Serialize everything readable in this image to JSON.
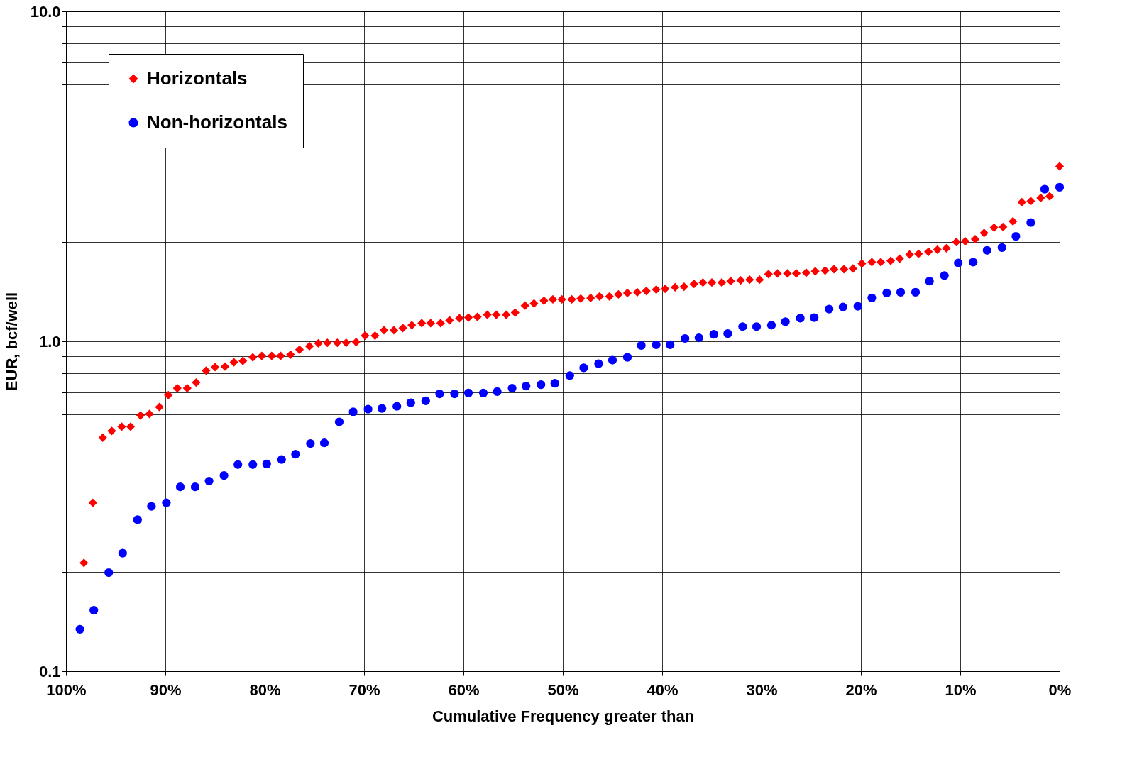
{
  "chart_data": {
    "type": "scatter",
    "xlabel": "Cumulative Frequency greater than",
    "ylabel": "EUR, bcf/well",
    "log": "y",
    "grid": true,
    "legend": "top left",
    "xlim": [
      100,
      0
    ],
    "xticks": [
      {
        "value": 100,
        "label": "100%"
      },
      {
        "value": 90,
        "label": "90%"
      },
      {
        "value": 80,
        "label": "80%"
      },
      {
        "value": 70,
        "label": "70%"
      },
      {
        "value": 60,
        "label": "60%"
      },
      {
        "value": 50,
        "label": "50%"
      },
      {
        "value": 40,
        "label": "40%"
      },
      {
        "value": 30,
        "label": "30%"
      },
      {
        "value": 20,
        "label": "20%"
      },
      {
        "value": 10,
        "label": "10%"
      },
      {
        "value": 0,
        "label": "0%"
      }
    ],
    "ylim": [
      0.1,
      10
    ],
    "yticks": [
      {
        "value": 0.1,
        "label": "0.1"
      },
      {
        "value": 0.2,
        "label": null
      },
      {
        "value": 0.3,
        "label": null
      },
      {
        "value": 0.4,
        "label": null
      },
      {
        "value": 0.5,
        "label": null
      },
      {
        "value": 0.6,
        "label": null
      },
      {
        "value": 0.7,
        "label": null
      },
      {
        "value": 0.8,
        "label": null
      },
      {
        "value": 0.9,
        "label": null
      },
      {
        "value": 1,
        "label": "1.0"
      },
      {
        "value": 2,
        "label": null
      },
      {
        "value": 3,
        "label": null
      },
      {
        "value": 4,
        "label": null
      },
      {
        "value": 5,
        "label": null
      },
      {
        "value": 6,
        "label": null
      },
      {
        "value": 7,
        "label": null
      },
      {
        "value": 8,
        "label": null
      },
      {
        "value": 9,
        "label": null
      },
      {
        "value": 10,
        "label": "10.0"
      }
    ],
    "series": [
      {
        "name": "Horizontals",
        "color": "#ff0000",
        "marker": "diamond",
        "x": [
          98.2,
          97.3,
          96.3,
          95.4,
          94.4,
          93.5,
          92.5,
          91.6,
          90.6,
          89.7,
          88.8,
          87.8,
          86.9,
          85.9,
          85.0,
          84.0,
          83.1,
          82.2,
          81.2,
          80.3,
          79.3,
          78.4,
          77.4,
          76.5,
          75.5,
          74.6,
          73.7,
          72.7,
          71.8,
          70.8,
          69.9,
          68.9,
          68.0,
          67.0,
          66.1,
          65.2,
          64.2,
          63.3,
          62.3,
          61.4,
          60.4,
          59.5,
          58.6,
          57.6,
          56.7,
          55.7,
          54.8,
          53.8,
          52.9,
          51.9,
          51.0,
          50.1,
          49.1,
          48.2,
          47.2,
          46.3,
          45.3,
          44.4,
          43.5,
          42.5,
          41.6,
          40.6,
          39.7,
          38.7,
          37.8,
          36.8,
          35.9,
          35.0,
          34.0,
          33.1,
          32.1,
          31.2,
          30.2,
          29.3,
          28.4,
          27.4,
          26.5,
          25.5,
          24.6,
          23.6,
          22.7,
          21.7,
          20.8,
          19.9,
          18.9,
          18.0,
          17.0,
          16.1,
          15.1,
          14.2,
          13.2,
          12.3,
          11.4,
          10.4,
          9.5,
          8.5,
          7.6,
          6.6,
          5.7,
          4.7,
          3.8,
          2.9,
          1.9,
          1.0,
          0.0
        ],
        "values": [
          0.213,
          0.324,
          0.51,
          0.535,
          0.551,
          0.551,
          0.596,
          0.602,
          0.632,
          0.687,
          0.721,
          0.721,
          0.75,
          0.815,
          0.835,
          0.838,
          0.864,
          0.872,
          0.894,
          0.903,
          0.903,
          0.903,
          0.911,
          0.943,
          0.966,
          0.986,
          0.99,
          0.99,
          0.99,
          0.995,
          1.04,
          1.04,
          1.081,
          1.08,
          1.097,
          1.119,
          1.135,
          1.135,
          1.135,
          1.158,
          1.175,
          1.18,
          1.186,
          1.204,
          1.204,
          1.204,
          1.222,
          1.283,
          1.302,
          1.327,
          1.34,
          1.34,
          1.34,
          1.347,
          1.353,
          1.367,
          1.367,
          1.387,
          1.401,
          1.408,
          1.421,
          1.435,
          1.442,
          1.457,
          1.464,
          1.492,
          1.507,
          1.507,
          1.507,
          1.522,
          1.53,
          1.537,
          1.537,
          1.598,
          1.606,
          1.606,
          1.606,
          1.614,
          1.63,
          1.638,
          1.654,
          1.654,
          1.662,
          1.72,
          1.737,
          1.737,
          1.754,
          1.78,
          1.832,
          1.841,
          1.868,
          1.896,
          1.914,
          2.0,
          2.01,
          2.04,
          2.13,
          2.21,
          2.22,
          2.31,
          2.64,
          2.66,
          2.72,
          2.75,
          3.39
        ]
      },
      {
        "name": "Non-horizontals",
        "color": "#0000ff",
        "marker": "circle",
        "x": [
          98.6,
          97.2,
          95.7,
          94.3,
          92.8,
          91.4,
          89.9,
          88.5,
          87.0,
          85.6,
          84.1,
          82.7,
          81.2,
          79.8,
          78.3,
          76.9,
          75.4,
          74.0,
          72.5,
          71.1,
          69.6,
          68.2,
          66.7,
          65.3,
          63.8,
          62.4,
          60.9,
          59.5,
          58.0,
          56.6,
          55.1,
          53.7,
          52.2,
          50.8,
          49.3,
          47.9,
          46.4,
          45.0,
          43.5,
          42.1,
          40.6,
          39.2,
          37.7,
          36.3,
          34.8,
          33.4,
          31.9,
          30.5,
          29.0,
          27.6,
          26.1,
          24.7,
          23.2,
          21.8,
          20.3,
          18.9,
          17.4,
          16.0,
          14.5,
          13.1,
          11.6,
          10.2,
          8.7,
          7.3,
          5.8,
          4.4,
          2.9,
          1.5,
          0.0
        ],
        "values": [
          0.134,
          0.153,
          0.199,
          0.228,
          0.288,
          0.316,
          0.324,
          0.362,
          0.362,
          0.377,
          0.392,
          0.423,
          0.423,
          0.425,
          0.438,
          0.455,
          0.49,
          0.492,
          0.57,
          0.611,
          0.623,
          0.626,
          0.635,
          0.651,
          0.66,
          0.693,
          0.693,
          0.697,
          0.697,
          0.704,
          0.721,
          0.732,
          0.739,
          0.746,
          0.787,
          0.831,
          0.855,
          0.877,
          0.894,
          0.971,
          0.976,
          0.976,
          1.02,
          1.025,
          1.05,
          1.055,
          1.108,
          1.108,
          1.119,
          1.147,
          1.175,
          1.18,
          1.252,
          1.27,
          1.277,
          1.353,
          1.401,
          1.408,
          1.408,
          1.522,
          1.582,
          1.728,
          1.737,
          1.887,
          1.924,
          2.08,
          2.29,
          2.89,
          2.93
        ]
      }
    ]
  }
}
